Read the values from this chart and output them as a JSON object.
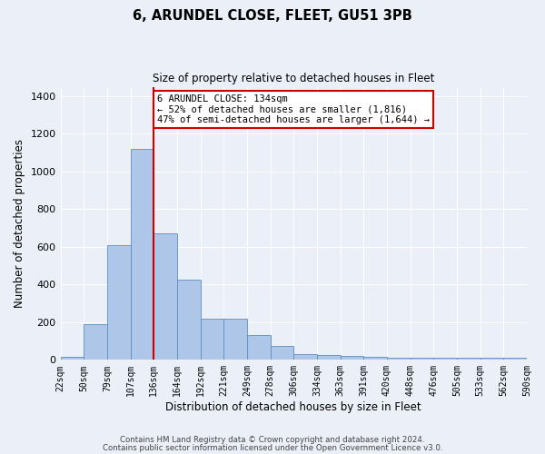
{
  "title": "6, ARUNDEL CLOSE, FLEET, GU51 3PB",
  "subtitle": "Size of property relative to detached houses in Fleet",
  "xlabel": "Distribution of detached houses by size in Fleet",
  "ylabel": "Number of detached properties",
  "bar_values": [
    15,
    190,
    610,
    1120,
    670,
    425,
    220,
    220,
    130,
    75,
    30,
    25,
    20,
    15,
    10,
    10,
    10,
    10,
    10,
    10
  ],
  "bin_labels": [
    "22sqm",
    "50sqm",
    "79sqm",
    "107sqm",
    "136sqm",
    "164sqm",
    "192sqm",
    "221sqm",
    "249sqm",
    "278sqm",
    "306sqm",
    "334sqm",
    "363sqm",
    "391sqm",
    "420sqm",
    "448sqm",
    "476sqm",
    "505sqm",
    "533sqm",
    "562sqm",
    "590sqm"
  ],
  "bar_color": "#aec6e8",
  "bar_edge_color": "#5a8fc2",
  "bg_color": "#eaeff8",
  "grid_color": "#ffffff",
  "ylim": [
    0,
    1450
  ],
  "yticks": [
    0,
    200,
    400,
    600,
    800,
    1000,
    1200,
    1400
  ],
  "property_line_x": 4,
  "property_line_color": "#cc0000",
  "annotation_text": "6 ARUNDEL CLOSE: 134sqm\n← 52% of detached houses are smaller (1,816)\n47% of semi-detached houses are larger (1,644) →",
  "annotation_box_color": "#ffffff",
  "annotation_box_edge_color": "#cc0000",
  "footnote1": "Contains HM Land Registry data © Crown copyright and database right 2024.",
  "footnote2": "Contains public sector information licensed under the Open Government Licence v3.0."
}
